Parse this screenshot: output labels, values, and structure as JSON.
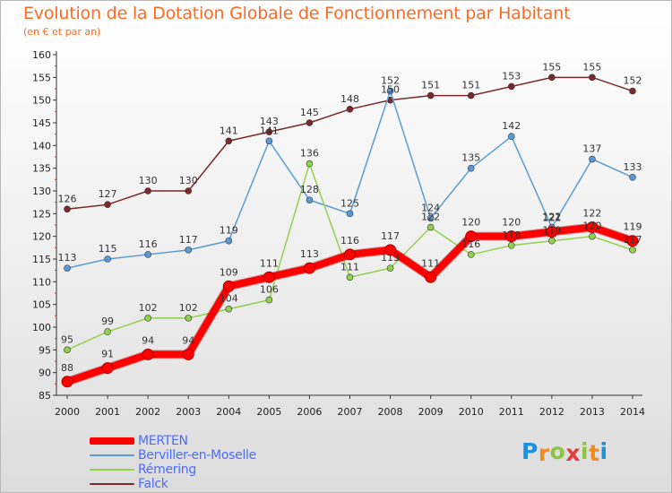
{
  "header": {
    "title": "Evolution de la Dotation Globale de Fonctionnement par Habitant",
    "subtitle": "(en € et par an)"
  },
  "chart_data": {
    "type": "line",
    "x": [
      2000,
      2001,
      2002,
      2003,
      2004,
      2005,
      2006,
      2007,
      2008,
      2009,
      2010,
      2011,
      2012,
      2013,
      2014
    ],
    "ylim": [
      85,
      160
    ],
    "yticks": [
      85,
      90,
      95,
      100,
      105,
      110,
      115,
      120,
      125,
      130,
      135,
      140,
      145,
      150,
      155,
      160
    ],
    "grid": false,
    "legend_position": "bottom-left",
    "series": [
      {
        "name": "Falck",
        "color": "#7a2a2a",
        "values": [
          126,
          127,
          130,
          130,
          141,
          143,
          145,
          148,
          150,
          151,
          151,
          153,
          155,
          155,
          152
        ],
        "labels": [
          "126",
          "127",
          "130",
          "130",
          "141",
          "143",
          "145",
          "148",
          "150",
          "151",
          "151",
          "153",
          "155",
          "155",
          "152"
        ]
      },
      {
        "name": "Berviller-en-Moselle",
        "color": "#5b9bd5",
        "values": [
          113,
          115,
          116,
          117,
          119,
          141,
          128,
          125,
          152,
          124,
          135,
          142,
          122,
          137,
          133
        ],
        "labels": [
          "113",
          "115",
          "116",
          "117",
          "119",
          "141",
          "128",
          "125",
          "152",
          "124",
          "135",
          "142",
          "122",
          "137",
          "133"
        ]
      },
      {
        "name": "Rémering",
        "color": "#92d050",
        "values": [
          95,
          99,
          102,
          102,
          104,
          106,
          136,
          111,
          113,
          122,
          116,
          118,
          119,
          120,
          117
        ],
        "labels": [
          "95",
          "99",
          "102",
          "102",
          "104",
          "106",
          "136",
          "111",
          "113",
          "122",
          "116",
          "118",
          "119",
          "120",
          "117"
        ]
      },
      {
        "name": "MERTEN",
        "color": "#ff0000",
        "values": [
          88,
          91,
          94,
          94,
          109,
          111,
          113,
          116,
          117,
          111,
          120,
          120,
          121,
          122,
          119
        ],
        "labels": [
          "88",
          "91",
          "94",
          "94",
          "109",
          "111",
          "113",
          "116",
          "117",
          "111",
          "120",
          "120",
          "121",
          "122",
          "119"
        ]
      }
    ]
  },
  "legend": {
    "items": [
      {
        "label": "MERTEN",
        "color": "#ff0000",
        "thickness": 8
      },
      {
        "label": "Berviller-en-Moselle",
        "color": "#5b9bd5",
        "thickness": 2
      },
      {
        "label": "Rémering",
        "color": "#92d050",
        "thickness": 2
      },
      {
        "label": "Falck",
        "color": "#7a2a2a",
        "thickness": 2
      }
    ]
  },
  "logo": {
    "letters": [
      "P",
      "r",
      "o",
      "x",
      "i",
      "t",
      "i"
    ],
    "colors": [
      "#1e90d8",
      "#f28c1e",
      "#8cc63f",
      "#e23b3b",
      "#8cc63f",
      "#f28c1e",
      "#1e90d8"
    ]
  }
}
